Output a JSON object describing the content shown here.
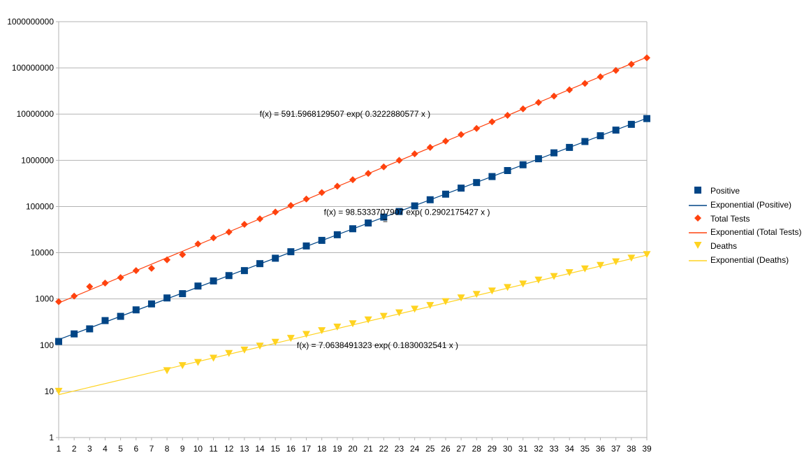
{
  "chart_data": {
    "type": "scatter",
    "xlim": [
      1,
      39
    ],
    "ylim": [
      1,
      1000000000
    ],
    "yscale": "log",
    "grid": true,
    "legend_position": "right",
    "x_ticks": [
      "1",
      "2",
      "3",
      "4",
      "5",
      "6",
      "7",
      "8",
      "9",
      "10",
      "11",
      "12",
      "13",
      "14",
      "15",
      "16",
      "17",
      "18",
      "19",
      "20",
      "21",
      "22",
      "23",
      "24",
      "25",
      "26",
      "27",
      "28",
      "29",
      "30",
      "31",
      "32",
      "33",
      "34",
      "35",
      "36",
      "37",
      "38",
      "39"
    ],
    "y_ticks": [
      "1",
      "10",
      "100",
      "1000",
      "10000",
      "100000",
      "1000000",
      "10000000",
      "100000000",
      "1000000000"
    ],
    "series": [
      {
        "name": "Positive",
        "marker": "square",
        "color": "#004586",
        "x": [
          1,
          2,
          3,
          4,
          5,
          6,
          7,
          8,
          9,
          10,
          11,
          12,
          13,
          14,
          15,
          16,
          17,
          18,
          19,
          20,
          21,
          22,
          23,
          24,
          25,
          26,
          27,
          28,
          29,
          30,
          31,
          32,
          33,
          34,
          35,
          36,
          37,
          38,
          39
        ],
        "y": [
          120,
          175,
          225,
          340,
          420,
          580,
          780,
          1050,
          1300,
          1900,
          2450,
          3200,
          4100,
          5800,
          7600,
          10500,
          14000,
          18500,
          24500,
          33000,
          44000,
          59000,
          78000,
          103000,
          140000,
          185000,
          250000,
          330000,
          445000,
          600000,
          800000,
          1080000,
          1450000,
          1900000,
          2550000,
          3400000,
          4500000,
          6000000,
          8000000
        ]
      },
      {
        "name": "Exponential (Positive)",
        "type": "trendline",
        "fit": "exponential",
        "a": 98.5333707907,
        "b": 0.2902175427,
        "color": "#004586"
      },
      {
        "name": "Total Tests",
        "marker": "diamond",
        "color": "#ff420e",
        "x": [
          1,
          2,
          3,
          4,
          5,
          6,
          7,
          8,
          9,
          10,
          11,
          12,
          13,
          14,
          15,
          16,
          17,
          18,
          19,
          20,
          21,
          22,
          23,
          24,
          25,
          26,
          27,
          28,
          29,
          30,
          31,
          32,
          33,
          34,
          35,
          36,
          37,
          38,
          39
        ],
        "y": [
          870,
          1150,
          1850,
          2200,
          2900,
          4100,
          4600,
          7000,
          9100,
          15500,
          21000,
          28000,
          41000,
          54000,
          76000,
          105000,
          145000,
          200000,
          275000,
          380000,
          520000,
          720000,
          1000000,
          1380000,
          1900000,
          2600000,
          3600000,
          4900000,
          6800000,
          9400000,
          13000000,
          17800000,
          24500000,
          33500000,
          46000000,
          64000000,
          88000000,
          120000000,
          165000000
        ]
      },
      {
        "name": "Exponential (Total Tests)",
        "type": "trendline",
        "fit": "exponential",
        "a": 591.5968129507,
        "b": 0.3222880577,
        "color": "#ff420e"
      },
      {
        "name": "Deaths",
        "marker": "triangle-down",
        "color": "#ffd320",
        "x": [
          1,
          8,
          9,
          10,
          11,
          12,
          13,
          14,
          15,
          16,
          17,
          18,
          19,
          20,
          21,
          22,
          23,
          24,
          25,
          26,
          27,
          28,
          29,
          30,
          31,
          32,
          33,
          34,
          35,
          36,
          37,
          38,
          39
        ],
        "y": [
          10,
          28,
          36,
          42,
          52,
          66,
          78,
          95,
          115,
          140,
          170,
          205,
          245,
          290,
          350,
          420,
          500,
          600,
          720,
          870,
          1050,
          1250,
          1480,
          1760,
          2100,
          2550,
          3050,
          3700,
          4450,
          5300,
          6350,
          7600,
          9100
        ]
      },
      {
        "name": "Exponential (Deaths)",
        "type": "trendline",
        "fit": "exponential",
        "a": 7.0638491323,
        "b": 0.1830032541,
        "color": "#ffd320"
      }
    ],
    "annotations": [
      {
        "text": "f(x) = 591.5968129507 exp( 0.3222880577 x )",
        "at": [
          19.5,
          10000000
        ]
      },
      {
        "text": "f(x) = 98.5333707907 exp( 0.2902175427 x )",
        "at": [
          23.5,
          75000
        ]
      },
      {
        "text": "f(x) = 7.0638491323 exp( 0.1830032541 x )",
        "at": [
          21.6,
          100
        ]
      },
      {
        "text": "=",
        "at": [
          22.1,
          50000
        ]
      }
    ]
  }
}
